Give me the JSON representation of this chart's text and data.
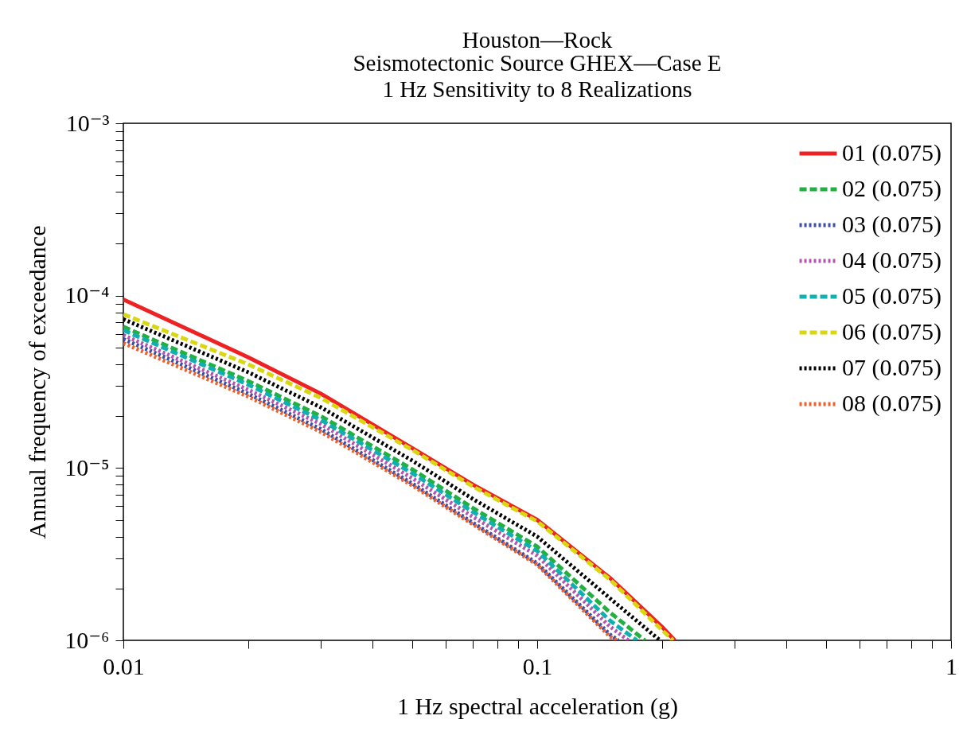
{
  "chart_data": {
    "type": "line",
    "title": "Houston—Rock",
    "subtitle": "Seismotectonic Source GHEX—Case E\n1 Hz Sensitivity to 8 Realizations",
    "xlabel": "1 Hz spectral acceleration (g)",
    "ylabel": "Annual frequency of exceedance",
    "log": "xy",
    "legend": "top right",
    "grid": false,
    "xlim": [
      0.01,
      1
    ],
    "ylim": [
      1e-06,
      0.001
    ],
    "xticks": [
      {
        "value": 0.01,
        "label": "0.01"
      },
      {
        "value": 0.02,
        "label": null
      },
      {
        "value": 0.03,
        "label": null
      },
      {
        "value": 0.04,
        "label": null
      },
      {
        "value": 0.05,
        "label": null
      },
      {
        "value": 0.06,
        "label": null
      },
      {
        "value": 0.07,
        "label": null
      },
      {
        "value": 0.08,
        "label": null
      },
      {
        "value": 0.09,
        "label": null
      },
      {
        "value": 0.1,
        "label": "0.1"
      },
      {
        "value": 0.2,
        "label": null
      },
      {
        "value": 0.3,
        "label": null
      },
      {
        "value": 0.4,
        "label": null
      },
      {
        "value": 0.5,
        "label": null
      },
      {
        "value": 0.6,
        "label": null
      },
      {
        "value": 0.7,
        "label": null
      },
      {
        "value": 0.8,
        "label": null
      },
      {
        "value": 0.9,
        "label": null
      },
      {
        "value": 1,
        "label": "1"
      }
    ],
    "yticks": [
      {
        "value": 1e-06,
        "label": "10⁻⁶"
      },
      {
        "value": 2e-06,
        "label": null
      },
      {
        "value": 3e-06,
        "label": null
      },
      {
        "value": 4e-06,
        "label": null
      },
      {
        "value": 5e-06,
        "label": null
      },
      {
        "value": 6e-06,
        "label": null
      },
      {
        "value": 7e-06,
        "label": null
      },
      {
        "value": 8e-06,
        "label": null
      },
      {
        "value": 9e-06,
        "label": null
      },
      {
        "value": 1e-05,
        "label": "10⁻⁵"
      },
      {
        "value": 2e-05,
        "label": null
      },
      {
        "value": 3e-05,
        "label": null
      },
      {
        "value": 4e-05,
        "label": null
      },
      {
        "value": 5e-05,
        "label": null
      },
      {
        "value": 6e-05,
        "label": null
      },
      {
        "value": 7e-05,
        "label": null
      },
      {
        "value": 8e-05,
        "label": null
      },
      {
        "value": 9e-05,
        "label": null
      },
      {
        "value": 0.0001,
        "label": "10⁻⁴"
      },
      {
        "value": 0.0002,
        "label": null
      },
      {
        "value": 0.0003,
        "label": null
      },
      {
        "value": 0.0004,
        "label": null
      },
      {
        "value": 0.0005,
        "label": null
      },
      {
        "value": 0.0006,
        "label": null
      },
      {
        "value": 0.0007,
        "label": null
      },
      {
        "value": 0.0008,
        "label": null
      },
      {
        "value": 0.0009,
        "label": null
      },
      {
        "value": 0.001,
        "label": "10⁻³"
      }
    ],
    "series": [
      {
        "name": "01 (0.075)",
        "color": "#ee2222",
        "line_style": "solid",
        "x": [
          0.01,
          0.02,
          0.03,
          0.05,
          0.07,
          0.1,
          0.15,
          0.2,
          0.215
        ],
        "values": [
          9.5e-05,
          4.4e-05,
          2.7e-05,
          1.3e-05,
          8e-06,
          5e-06,
          2.3e-06,
          1.2e-06,
          1e-06
        ]
      },
      {
        "name": "02 (0.075)",
        "color": "#22b040",
        "line_style": "dashed",
        "x": [
          0.01,
          0.02,
          0.03,
          0.05,
          0.07,
          0.1,
          0.15,
          0.182
        ],
        "values": [
          6.6e-05,
          3.2e-05,
          2e-05,
          9.8e-06,
          5.85e-06,
          3.5e-06,
          1.45e-06,
          1e-06
        ]
      },
      {
        "name": "03 (0.075)",
        "color": "#3a4fa8",
        "line_style": "dotted",
        "x": [
          0.01,
          0.02,
          0.03,
          0.05,
          0.07,
          0.1,
          0.15,
          0.157
        ],
        "values": [
          5.6e-05,
          2.7e-05,
          1.68e-05,
          8.1e-06,
          4.8e-06,
          2.8e-06,
          1.08e-06,
          1e-06
        ]
      },
      {
        "name": "04 (0.075)",
        "color": "#b455b0",
        "line_style": "dotted",
        "x": [
          0.01,
          0.02,
          0.03,
          0.05,
          0.07,
          0.1,
          0.15,
          0.166
        ],
        "values": [
          5.9e-05,
          2.85e-05,
          1.8e-05,
          8.7e-06,
          5.2e-06,
          3.1e-06,
          1.2e-06,
          1e-06
        ]
      },
      {
        "name": "05 (0.075)",
        "color": "#10b0b0",
        "line_style": "dashed",
        "x": [
          0.01,
          0.02,
          0.03,
          0.05,
          0.07,
          0.1,
          0.15,
          0.174
        ],
        "values": [
          6.3e-05,
          3.05e-05,
          1.9e-05,
          9.3e-06,
          5.55e-06,
          3.3e-06,
          1.3e-06,
          1e-06
        ]
      },
      {
        "name": "06 (0.075)",
        "color": "#d8d810",
        "line_style": "dashed",
        "x": [
          0.01,
          0.02,
          0.03,
          0.05,
          0.07,
          0.1,
          0.15,
          0.2,
          0.213
        ],
        "values": [
          7.8e-05,
          4e-05,
          2.55e-05,
          1.27e-05,
          7.8e-06,
          4.9e-06,
          2.25e-06,
          1.15e-06,
          1e-06
        ]
      },
      {
        "name": "07 (0.075)",
        "color": "#000000",
        "line_style": "dotted",
        "x": [
          0.01,
          0.02,
          0.03,
          0.05,
          0.07,
          0.1,
          0.15,
          0.198
        ],
        "values": [
          7.3e-05,
          3.6e-05,
          2.25e-05,
          1.1e-05,
          6.6e-06,
          4e-06,
          1.75e-06,
          1e-06
        ]
      },
      {
        "name": "08 (0.075)",
        "color": "#f0602a",
        "line_style": "dotted",
        "x": [
          0.01,
          0.02,
          0.03,
          0.05,
          0.07,
          0.1,
          0.15,
          0.156
        ],
        "values": [
          5.3e-05,
          2.6e-05,
          1.62e-05,
          7.9e-06,
          4.7e-06,
          2.75e-06,
          1.05e-06,
          1e-06
        ]
      }
    ]
  }
}
